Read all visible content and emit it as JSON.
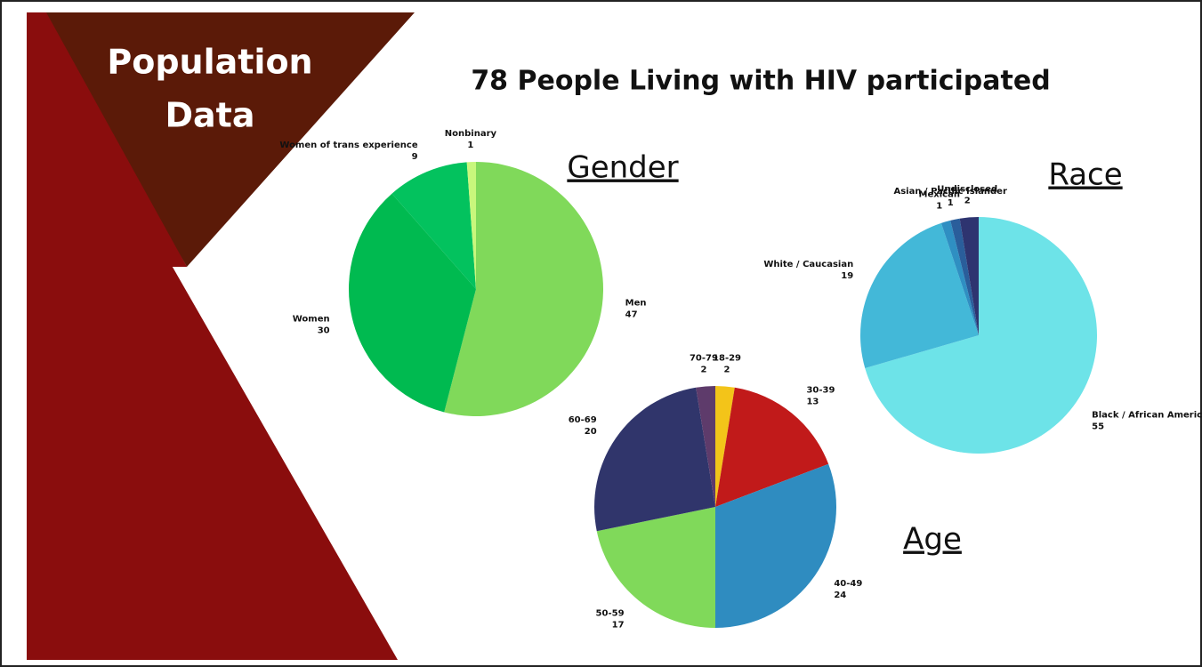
{
  "header": {
    "title_line1": "Population",
    "title_line2": "Data",
    "subtitle": "78 People Living with HIV participated"
  },
  "chart_data": [
    {
      "type": "pie",
      "title": "Gender",
      "categories": [
        "Men",
        "Women",
        "Women of trans experience",
        "Nonbinary"
      ],
      "values": [
        47,
        30,
        9,
        1
      ],
      "colors": [
        "#80d95a",
        "#00ba50",
        "#03c25e",
        "#c8f77c"
      ]
    },
    {
      "type": "pie",
      "title": "Race",
      "categories": [
        "Black / African American",
        "White / Caucasian",
        "Mexican",
        "Asian / Pacific Islander",
        "Undisclosed"
      ],
      "values": [
        55,
        19,
        1,
        1,
        2
      ],
      "colors": [
        "#6de3e8",
        "#43b8d8",
        "#2f8fc2",
        "#2a5e9b",
        "#2e3470"
      ]
    },
    {
      "type": "pie",
      "title": "Age",
      "categories": [
        "18-29",
        "30-39",
        "40-49",
        "50-59",
        "60-69",
        "70-79"
      ],
      "values": [
        2,
        13,
        24,
        17,
        20,
        2
      ],
      "colors": [
        "#f3c419",
        "#c11a1a",
        "#2f8cc0",
        "#80d95a",
        "#30356b",
        "#5e3b6b"
      ]
    }
  ]
}
